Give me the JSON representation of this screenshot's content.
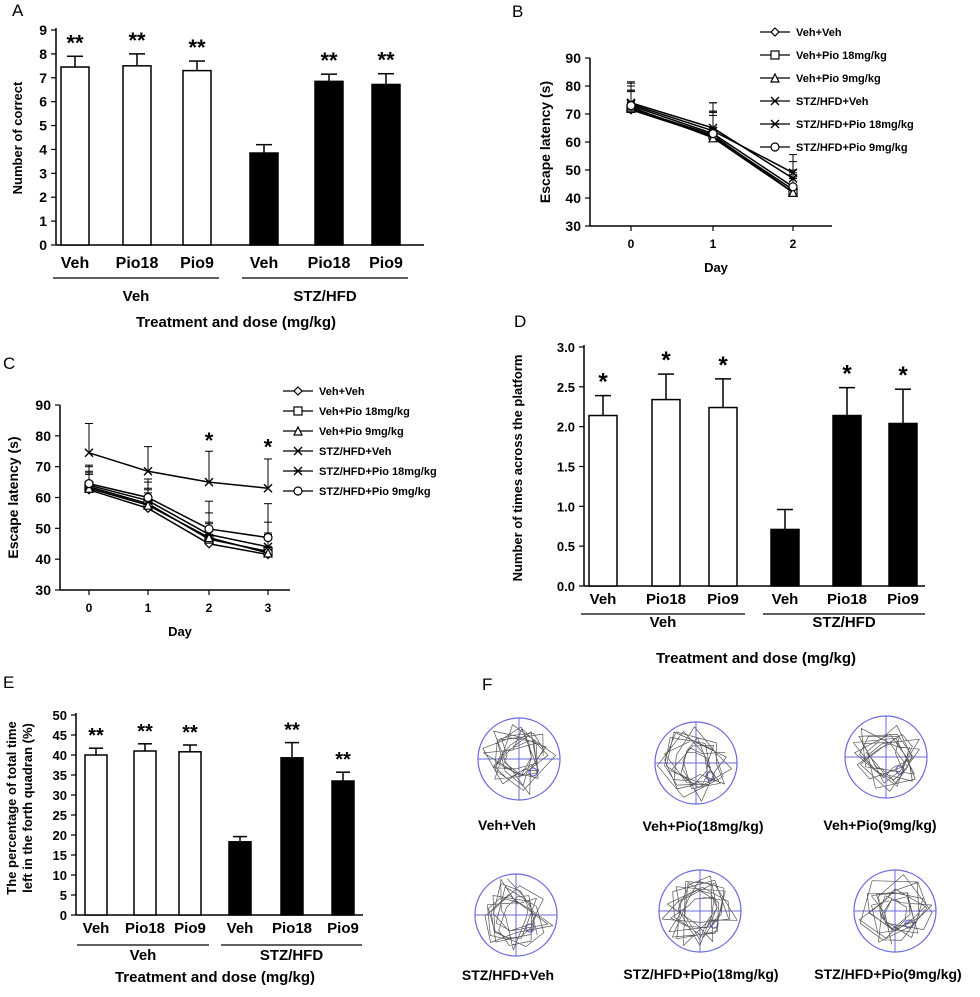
{
  "chart_data": [
    {
      "panel": "A",
      "type": "bar",
      "ylabel": "Number of correct",
      "xlabel": "Treatment and dose (mg/kg)",
      "ylim": [
        0,
        9
      ],
      "yticks": [
        0,
        1,
        2,
        3,
        4,
        5,
        6,
        7,
        8,
        9
      ],
      "categories": [
        "Veh",
        "Pio18",
        "Pio9",
        "Veh",
        "Pio18",
        "Pio9"
      ],
      "values": [
        7.45,
        7.5,
        7.3,
        3.85,
        6.85,
        6.72
      ],
      "errors": [
        0.45,
        0.5,
        0.4,
        0.35,
        0.3,
        0.45
      ],
      "fills": [
        "white",
        "white",
        "white",
        "black",
        "black",
        "black"
      ],
      "sig": [
        "**",
        "**",
        "**",
        "",
        "**",
        "**"
      ],
      "groups": [
        {
          "label": "Veh",
          "from": 0,
          "to": 2
        },
        {
          "label": "STZ/HFD",
          "from": 3,
          "to": 5
        }
      ]
    },
    {
      "panel": "B",
      "type": "line",
      "ylabel": "Escape latency (s)",
      "xlabel": "Day",
      "x": [
        0,
        1,
        2
      ],
      "ylim": [
        30,
        90
      ],
      "yticks": [
        30,
        40,
        50,
        60,
        70,
        80,
        90
      ],
      "series": [
        {
          "name": "Veh+Veh",
          "marker": "diamond",
          "values": [
            71.5,
            62,
            43
          ],
          "err": [
            7,
            9,
            6
          ]
        },
        {
          "name": "Veh+Pio 18mg/kg",
          "marker": "square",
          "values": [
            72,
            62.5,
            42
          ],
          "err": [
            6,
            8,
            5
          ]
        },
        {
          "name": "Veh+Pio 9mg/kg",
          "marker": "triangle",
          "values": [
            72.5,
            61.5,
            42
          ],
          "err": [
            6,
            8,
            5
          ]
        },
        {
          "name": "STZ/HFD+Veh",
          "marker": "x",
          "values": [
            73.5,
            64,
            49
          ],
          "err": [
            8,
            10,
            6.5
          ]
        },
        {
          "name": "STZ/HFD+Pio 18mg/kg",
          "marker": "xbar",
          "values": [
            74,
            65,
            47
          ],
          "err": [
            7,
            9,
            6
          ]
        },
        {
          "name": "STZ/HFD+Pio 9mg/kg",
          "marker": "circle",
          "values": [
            73,
            63,
            44
          ],
          "err": [
            7,
            8,
            6
          ]
        }
      ],
      "sig": []
    },
    {
      "panel": "C",
      "type": "line",
      "ylabel": "Escape latency (s)",
      "xlabel": "Day",
      "x": [
        0,
        1,
        2,
        3
      ],
      "ylim": [
        30,
        90
      ],
      "yticks": [
        30,
        40,
        50,
        60,
        70,
        80,
        90
      ],
      "series": [
        {
          "name": "Veh+Veh",
          "marker": "diamond",
          "values": [
            62.5,
            56.5,
            45,
            41.5
          ],
          "err": [
            5,
            5,
            5,
            5
          ]
        },
        {
          "name": "Veh+Pio 18mg/kg",
          "marker": "square",
          "values": [
            63.5,
            58,
            46.5,
            42.5
          ],
          "err": [
            5,
            5,
            5,
            6
          ]
        },
        {
          "name": "Veh+Pio 9mg/kg",
          "marker": "triangle",
          "values": [
            63,
            57.5,
            47,
            42
          ],
          "err": [
            5,
            5,
            5,
            6
          ]
        },
        {
          "name": "STZ/HFD+Veh",
          "marker": "x",
          "values": [
            74.5,
            68.5,
            65,
            63
          ],
          "err": [
            9.5,
            8,
            10,
            9.5
          ]
        },
        {
          "name": "STZ/HFD+Pio 18mg/kg",
          "marker": "xbar",
          "values": [
            64,
            59,
            48,
            44
          ],
          "err": [
            6,
            6,
            7,
            8
          ]
        },
        {
          "name": "STZ/HFD+Pio 9mg/kg",
          "marker": "circle",
          "values": [
            64.5,
            60,
            49.8,
            47
          ],
          "err": [
            6,
            6,
            9,
            11
          ]
        }
      ],
      "sig": [
        {
          "x": 2,
          "label": "*",
          "y": 76
        },
        {
          "x": 3,
          "label": "*",
          "y": 74
        }
      ]
    },
    {
      "panel": "D",
      "type": "bar",
      "ylabel": "Number of times across the platform",
      "xlabel": "Treatment and dose (mg/kg)",
      "ylim": [
        0,
        3
      ],
      "yticks": [
        0.0,
        0.5,
        1.0,
        1.5,
        2.0,
        2.5,
        3.0
      ],
      "decimals": 1,
      "categories": [
        "Veh",
        "Pio18",
        "Pio9",
        "Veh",
        "Pio18",
        "Pio9"
      ],
      "values": [
        2.14,
        2.34,
        2.24,
        0.71,
        2.14,
        2.04
      ],
      "errors": [
        0.25,
        0.32,
        0.36,
        0.25,
        0.35,
        0.43
      ],
      "fills": [
        "white",
        "white",
        "white",
        "black",
        "black",
        "black"
      ],
      "sig": [
        "*",
        "*",
        "*",
        "",
        "*",
        "*"
      ],
      "groups": [
        {
          "label": "Veh",
          "from": 0,
          "to": 2
        },
        {
          "label": "STZ/HFD",
          "from": 3,
          "to": 5
        }
      ]
    },
    {
      "panel": "E",
      "type": "bar",
      "ylabel": "The percentage of total time left in the forth quadran (%)",
      "xlabel": "Treatment and dose (mg/kg)",
      "ylim": [
        0,
        50
      ],
      "yticks": [
        0,
        5,
        10,
        15,
        20,
        25,
        30,
        35,
        40,
        45,
        50
      ],
      "categories": [
        "Veh",
        "Pio18",
        "Pio9",
        "Veh",
        "Pio18",
        "Pio9"
      ],
      "values": [
        40,
        41,
        40.8,
        18.3,
        39.3,
        33.5
      ],
      "errors": [
        1.7,
        1.8,
        1.7,
        1.3,
        3.8,
        2.2
      ],
      "fills": [
        "white",
        "white",
        "white",
        "black",
        "black",
        "black"
      ],
      "sig": [
        "**",
        "**",
        "**",
        "",
        "**",
        "**"
      ],
      "groups": [
        {
          "label": "Veh",
          "from": 0,
          "to": 2
        },
        {
          "label": "STZ/HFD",
          "from": 3,
          "to": 5
        }
      ]
    }
  ],
  "panels": {
    "A": "A",
    "B": "B",
    "C": "C",
    "D": "D",
    "E": "E",
    "F": "F"
  },
  "swim_paths": [
    "Veh+Veh",
    "Veh+Pio(18mg/kg)",
    "Veh+Pio(9mg/kg)",
    "STZ/HFD+Veh",
    "STZ/HFD+Pio(18mg/kg)",
    "STZ/HFD+Pio(9mg/kg)"
  ],
  "colors": {
    "grid": "#6a6adc",
    "path": "#555555"
  }
}
